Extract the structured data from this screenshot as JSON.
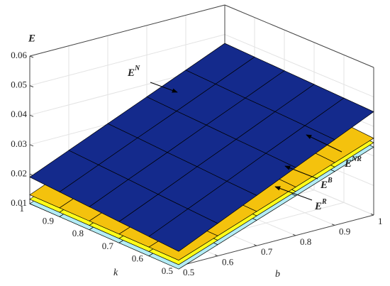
{
  "chart_data": {
    "type": "surface",
    "z_label": "E",
    "x_label": "b",
    "y_label": "k",
    "x": [
      0.5,
      0.6,
      0.7,
      0.8,
      0.9,
      1
    ],
    "y": [
      0.5,
      0.6,
      0.7,
      0.8,
      0.9,
      1
    ],
    "xlim": [
      0.5,
      1
    ],
    "ylim": [
      0.5,
      1
    ],
    "zlim": [
      0.01,
      0.06
    ],
    "xticks": [
      0.5,
      0.6,
      0.7,
      0.8,
      0.9,
      1
    ],
    "yticks": [
      0.5,
      0.6,
      0.7,
      0.8,
      0.9,
      1
    ],
    "zticks": [
      0.01,
      0.02,
      0.03,
      0.04,
      0.05,
      0.06
    ],
    "grid": true,
    "series": [
      {
        "name": "E",
        "superscript": "R",
        "color": "#b3ecf5",
        "values": [
          [
            0.009,
            0.0138,
            0.0186,
            0.0234,
            0.0282,
            0.033
          ],
          [
            0.0092,
            0.0141,
            0.019,
            0.024,
            0.0289,
            0.0338
          ],
          [
            0.0094,
            0.0144,
            0.0195,
            0.0245,
            0.0296,
            0.0346
          ],
          [
            0.0096,
            0.0148,
            0.0199,
            0.0251,
            0.0302,
            0.0354
          ],
          [
            0.0098,
            0.0151,
            0.0204,
            0.0256,
            0.0309,
            0.0362
          ],
          [
            0.01,
            0.0154,
            0.0208,
            0.0262,
            0.0316,
            0.037
          ]
        ]
      },
      {
        "name": "E",
        "superscript": "B",
        "color": "#ffff1a",
        "values": [
          [
            0.0105,
            0.0153,
            0.0201,
            0.0249,
            0.0297,
            0.0345
          ],
          [
            0.0107,
            0.0156,
            0.0205,
            0.0255,
            0.0304,
            0.0353
          ],
          [
            0.0109,
            0.0159,
            0.021,
            0.026,
            0.0311,
            0.0361
          ],
          [
            0.0111,
            0.0163,
            0.0214,
            0.0266,
            0.0317,
            0.0369
          ],
          [
            0.0113,
            0.0166,
            0.0219,
            0.0271,
            0.0324,
            0.0377
          ],
          [
            0.0115,
            0.0169,
            0.0223,
            0.0277,
            0.0331,
            0.0385
          ]
        ]
      },
      {
        "name": "E",
        "superscript": "NR",
        "color": "#f4c20d",
        "values": [
          [
            0.012,
            0.0168,
            0.0216,
            0.0264,
            0.0312,
            0.036
          ],
          [
            0.0122,
            0.0171,
            0.022,
            0.027,
            0.0319,
            0.0368
          ],
          [
            0.0124,
            0.0174,
            0.0225,
            0.0275,
            0.0326,
            0.0376
          ],
          [
            0.0126,
            0.0178,
            0.0229,
            0.0281,
            0.0332,
            0.0384
          ],
          [
            0.0128,
            0.0181,
            0.0234,
            0.0286,
            0.0339,
            0.0392
          ],
          [
            0.013,
            0.0184,
            0.0238,
            0.0292,
            0.0346,
            0.04
          ]
        ]
      },
      {
        "name": "E",
        "superscript": "N",
        "color": "#142a8c",
        "values": [
          [
            0.015,
            0.021,
            0.027,
            0.033,
            0.039,
            0.045
          ],
          [
            0.0158,
            0.0217,
            0.0276,
            0.0336,
            0.0395,
            0.0454
          ],
          [
            0.0166,
            0.0224,
            0.0283,
            0.0341,
            0.04,
            0.0458
          ],
          [
            0.0174,
            0.0232,
            0.0289,
            0.0347,
            0.0404,
            0.0462
          ],
          [
            0.0182,
            0.0239,
            0.0296,
            0.0352,
            0.0409,
            0.0466
          ],
          [
            0.019,
            0.0246,
            0.0302,
            0.0358,
            0.0414,
            0.047
          ]
        ]
      }
    ]
  }
}
